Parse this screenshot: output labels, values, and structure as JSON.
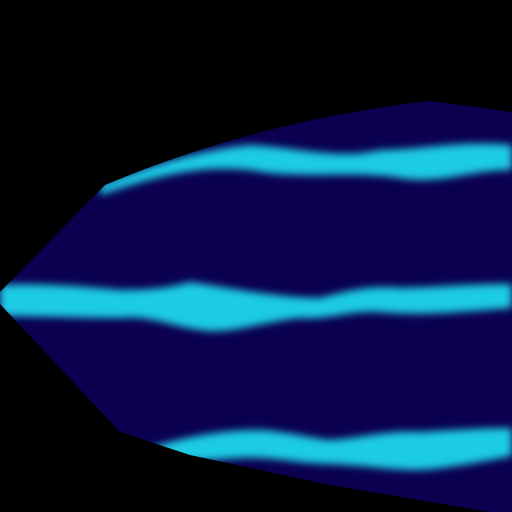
{
  "scene": {
    "background_color": "#000000",
    "shape_color": "#0b0050",
    "stripe_color": "#1ccbe6",
    "stripe_count": 3
  }
}
